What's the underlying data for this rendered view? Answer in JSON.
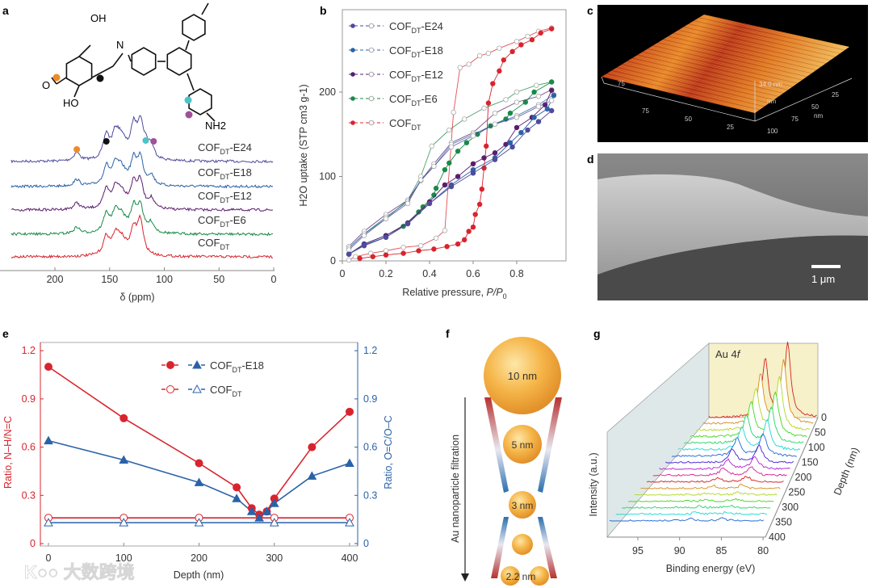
{
  "panels": {
    "a": "a",
    "b": "b",
    "c": "c",
    "d": "d",
    "e": "e",
    "f": "f",
    "g": "g"
  },
  "colors": {
    "E24": "#4f4a9e",
    "E18": "#2a62a8",
    "E12": "#5a1e6e",
    "E6": "#1a8a4a",
    "DT": "#d8242e",
    "orange": "#f08a24",
    "cyan": "#4cc3c9",
    "purple": "#a0509a",
    "black": "#111111"
  },
  "structure": {
    "oh_top": "OH",
    "n": "N",
    "o": "O",
    "ho": "HO",
    "nh2": "NH2"
  },
  "watermark": "大数跨境",
  "chart_data": [
    {
      "id": "a",
      "type": "line",
      "title": "",
      "xlabel": "δ (ppm)",
      "xlim": [
        240,
        0
      ],
      "xticks": [
        "200",
        "150",
        "100",
        "50",
        "0"
      ],
      "series": [
        {
          "key": "E24",
          "name": "COF",
          "sub": "DT",
          "suffix": "-E24",
          "peaks_ppm": [
            180,
            153,
            145,
            140,
            128,
            122,
            117,
            112
          ]
        },
        {
          "key": "E18",
          "name": "COF",
          "sub": "DT",
          "suffix": "-E18",
          "peaks_ppm": [
            180,
            153,
            145,
            140,
            128,
            122,
            112
          ]
        },
        {
          "key": "E12",
          "name": "COF",
          "sub": "DT",
          "suffix": "-E12",
          "peaks_ppm": [
            180,
            153,
            145,
            140,
            128,
            122,
            112
          ]
        },
        {
          "key": "E6",
          "name": "COF",
          "sub": "DT",
          "suffix": "-E6",
          "peaks_ppm": [
            180,
            153,
            145,
            140,
            128,
            122,
            112
          ]
        },
        {
          "key": "DT",
          "name": "COF",
          "sub": "DT",
          "suffix": "",
          "peaks_ppm": [
            153,
            145,
            140,
            128,
            122
          ]
        }
      ],
      "markers": [
        {
          "ppm": 180,
          "color": "orange"
        },
        {
          "ppm": 153,
          "color": "black"
        },
        {
          "ppm": 117,
          "color": "cyan"
        },
        {
          "ppm": 112,
          "color": "purple"
        }
      ]
    },
    {
      "id": "b",
      "type": "line",
      "xlabel": "Relative pressure, P/P0",
      "xlabel_main": "Relative pressure, ",
      "xlabel_p": "P",
      "xlabel_p0": "/P",
      "xlabel_sub": "0",
      "ylabel": "H2O uptake (STP cm3 g-1)",
      "xlim": [
        0,
        1
      ],
      "ylim": [
        0,
        290
      ],
      "xticks": [
        "0",
        "0.2",
        "0.4",
        "0.6",
        "0.8"
      ],
      "yticks": [
        "0",
        "100",
        "200"
      ],
      "series": [
        {
          "key": "E24",
          "name": "COF",
          "sub": "DT",
          "suffix": "-E24",
          "adsorption": [
            [
              0.03,
              8
            ],
            [
              0.1,
              18
            ],
            [
              0.2,
              28
            ],
            [
              0.3,
              44
            ],
            [
              0.4,
              68
            ],
            [
              0.5,
              88
            ],
            [
              0.6,
              104
            ],
            [
              0.7,
              120
            ],
            [
              0.78,
              135
            ],
            [
              0.85,
              155
            ],
            [
              0.9,
              165
            ],
            [
              0.96,
              178
            ]
          ],
          "desorption": [
            [
              0.96,
              190
            ],
            [
              0.9,
              183
            ],
            [
              0.8,
              170
            ],
            [
              0.7,
              162
            ],
            [
              0.6,
              148
            ],
            [
              0.5,
              135
            ],
            [
              0.42,
              112
            ],
            [
              0.36,
              96
            ],
            [
              0.3,
              68
            ],
            [
              0.2,
              50
            ],
            [
              0.1,
              30
            ],
            [
              0.03,
              13
            ]
          ]
        },
        {
          "key": "E18",
          "name": "COF",
          "sub": "DT",
          "suffix": "-E18",
          "adsorption": [
            [
              0.03,
              8
            ],
            [
              0.1,
              19
            ],
            [
              0.2,
              28
            ],
            [
              0.3,
              44
            ],
            [
              0.4,
              68
            ],
            [
              0.5,
              90
            ],
            [
              0.6,
              108
            ],
            [
              0.7,
              122
            ],
            [
              0.77,
              140
            ],
            [
              0.82,
              152
            ],
            [
              0.88,
              170
            ],
            [
              0.94,
              180
            ],
            [
              0.97,
              196
            ]
          ],
          "desorption": [
            [
              0.97,
              197
            ],
            [
              0.9,
              185
            ],
            [
              0.8,
              172
            ],
            [
              0.7,
              162
            ],
            [
              0.6,
              150
            ],
            [
              0.5,
              138
            ],
            [
              0.42,
              112
            ],
            [
              0.36,
              95
            ],
            [
              0.3,
              70
            ],
            [
              0.2,
              52
            ],
            [
              0.1,
              32
            ],
            [
              0.03,
              15
            ]
          ]
        },
        {
          "key": "E12",
          "name": "COF",
          "sub": "DT",
          "suffix": "-E12",
          "adsorption": [
            [
              0.03,
              8
            ],
            [
              0.1,
              20
            ],
            [
              0.2,
              30
            ],
            [
              0.3,
              45
            ],
            [
              0.4,
              70
            ],
            [
              0.47,
              90
            ],
            [
              0.53,
              100
            ],
            [
              0.6,
              115
            ],
            [
              0.65,
              122
            ],
            [
              0.7,
              128
            ],
            [
              0.75,
              138
            ],
            [
              0.8,
              158
            ],
            [
              0.87,
              170
            ],
            [
              0.93,
              185
            ],
            [
              0.96,
              202
            ]
          ],
          "desorption": [
            [
              0.96,
              203
            ],
            [
              0.9,
              195
            ],
            [
              0.8,
              188
            ],
            [
              0.7,
              175
            ],
            [
              0.6,
              152
            ],
            [
              0.5,
              140
            ],
            [
              0.42,
              115
            ],
            [
              0.36,
              95
            ],
            [
              0.3,
              72
            ],
            [
              0.2,
              55
            ],
            [
              0.1,
              35
            ],
            [
              0.03,
              17
            ]
          ]
        },
        {
          "key": "E6",
          "name": "COF",
          "sub": "DT",
          "suffix": "-E6",
          "adsorption": [
            [
              0.03,
              8
            ],
            [
              0.1,
              20
            ],
            [
              0.2,
              30
            ],
            [
              0.28,
              41
            ],
            [
              0.35,
              58
            ],
            [
              0.37,
              64
            ],
            [
              0.42,
              78
            ],
            [
              0.43,
              86
            ],
            [
              0.47,
              108
            ],
            [
              0.49,
              116
            ],
            [
              0.53,
              130
            ],
            [
              0.57,
              140
            ],
            [
              0.62,
              150
            ],
            [
              0.68,
              160
            ],
            [
              0.75,
              168
            ],
            [
              0.77,
              175
            ],
            [
              0.84,
              188
            ],
            [
              0.88,
              200
            ],
            [
              0.96,
              212
            ]
          ],
          "desorption": [
            [
              0.96,
              212
            ],
            [
              0.89,
              208
            ],
            [
              0.8,
              200
            ],
            [
              0.75,
              191
            ],
            [
              0.65,
              181
            ],
            [
              0.56,
              168
            ],
            [
              0.49,
              155
            ],
            [
              0.41,
              136
            ],
            [
              0.36,
              100
            ],
            [
              0.3,
              72
            ],
            [
              0.2,
              50
            ],
            [
              0.1,
              32
            ],
            [
              0.03,
              15
            ]
          ]
        },
        {
          "key": "DT",
          "name": "COF",
          "sub": "DT",
          "suffix": "",
          "adsorption": [
            [
              0.08,
              3
            ],
            [
              0.14,
              5
            ],
            [
              0.2,
              7
            ],
            [
              0.28,
              9
            ],
            [
              0.35,
              12
            ],
            [
              0.42,
              14
            ],
            [
              0.48,
              17
            ],
            [
              0.53,
              20
            ],
            [
              0.56,
              25
            ],
            [
              0.58,
              35
            ],
            [
              0.6,
              40
            ],
            [
              0.61,
              55
            ],
            [
              0.63,
              67
            ],
            [
              0.64,
              85
            ],
            [
              0.65,
              110
            ],
            [
              0.66,
              136
            ],
            [
              0.67,
              187
            ],
            [
              0.69,
              210
            ],
            [
              0.72,
              225
            ],
            [
              0.74,
              238
            ],
            [
              0.78,
              248
            ],
            [
              0.82,
              256
            ],
            [
              0.87,
              262
            ],
            [
              0.91,
              270
            ],
            [
              0.96,
              275
            ]
          ],
          "desorption": [
            [
              0.96,
              276
            ],
            [
              0.9,
              272
            ],
            [
              0.85,
              266
            ],
            [
              0.8,
              260
            ],
            [
              0.72,
              252
            ],
            [
              0.67,
              246
            ],
            [
              0.63,
              243
            ],
            [
              0.58,
              233
            ],
            [
              0.54,
              229
            ],
            [
              0.51,
              176
            ],
            [
              0.47,
              36
            ],
            [
              0.43,
              27
            ],
            [
              0.36,
              18
            ],
            [
              0.28,
              16
            ],
            [
              0.2,
              12
            ],
            [
              0.13,
              9
            ],
            [
              0.06,
              5
            ],
            [
              0.03,
              1
            ]
          ]
        }
      ]
    },
    {
      "id": "e",
      "type": "line",
      "xlabel": "Depth (nm)",
      "ylabel_left": "Ratio, N–H/N=C",
      "ylabel_right": "Ratio, O=C/O–C",
      "xlim": [
        0,
        400
      ],
      "ylim": [
        0,
        1.2
      ],
      "xticks": [
        "0",
        "100",
        "200",
        "300",
        "400"
      ],
      "yticks": [
        "0",
        "0.3",
        "0.6",
        "0.9",
        "1.2"
      ],
      "legend": [
        {
          "name": "COF",
          "sub": "DT",
          "suffix": "-E18"
        },
        {
          "name": "COF",
          "sub": "DT",
          "suffix": ""
        }
      ],
      "series": [
        {
          "name": "COFDT-E18 N–H/N=C",
          "axis": "left",
          "color": "DT",
          "marker": "filled-circle",
          "x": [
            0,
            100,
            200,
            250,
            270,
            280,
            290,
            300,
            350,
            400
          ],
          "y": [
            1.1,
            0.78,
            0.5,
            0.35,
            0.22,
            0.18,
            0.2,
            0.28,
            0.6,
            0.82
          ]
        },
        {
          "name": "COFDT-E18 O=C/O–C",
          "axis": "right",
          "color": "E18",
          "marker": "filled-triangle",
          "x": [
            0,
            100,
            200,
            250,
            270,
            280,
            290,
            300,
            350,
            400
          ],
          "y": [
            0.64,
            0.52,
            0.38,
            0.28,
            0.2,
            0.16,
            0.2,
            0.25,
            0.42,
            0.5
          ]
        },
        {
          "name": "COFDT N–H/N=C",
          "axis": "left",
          "color": "DT",
          "marker": "open-circle",
          "x": [
            0,
            100,
            200,
            300,
            400
          ],
          "y": [
            0.16,
            0.16,
            0.16,
            0.16,
            0.16
          ]
        },
        {
          "name": "COFDT O=C/O–C",
          "axis": "right",
          "color": "E18",
          "marker": "open-triangle",
          "x": [
            0,
            100,
            200,
            300,
            400
          ],
          "y": [
            0.13,
            0.13,
            0.13,
            0.13,
            0.13
          ]
        }
      ]
    },
    {
      "id": "g",
      "type": "line",
      "title": "Au 4f",
      "title_main": "Au 4",
      "title_ital": "f",
      "xlabel": "Binding energy (eV)",
      "ylabel": "Intensity (a.u.)",
      "zlabel": "Depth (nm)",
      "xlim": [
        97,
        79
      ],
      "xticks": [
        "95",
        "90",
        "85",
        "80"
      ],
      "depths": [
        0,
        25,
        50,
        75,
        100,
        125,
        150,
        175,
        200,
        225,
        250,
        275,
        300,
        325,
        350,
        375,
        400
      ],
      "depth_ticks": [
        "0",
        "50",
        "100",
        "150",
        "200",
        "250",
        "300",
        "350",
        "400"
      ],
      "peaks_ev": [
        84.0,
        87.7
      ]
    }
  ],
  "panel_c": {
    "height_label": "34.0 nm",
    "left": "75",
    "front": [
      "75",
      "50",
      "25"
    ],
    "front_unit": "nm",
    "right": [
      "25",
      "50",
      "75",
      "100"
    ],
    "right_unit": "nm"
  },
  "panel_d": {
    "scale_bar": "1 μm"
  },
  "panel_f": {
    "arrow_label": "Au nanoparticle filtration",
    "particles": [
      "10 nm",
      "5 nm",
      "3 nm",
      "",
      "2.2 nm"
    ]
  }
}
